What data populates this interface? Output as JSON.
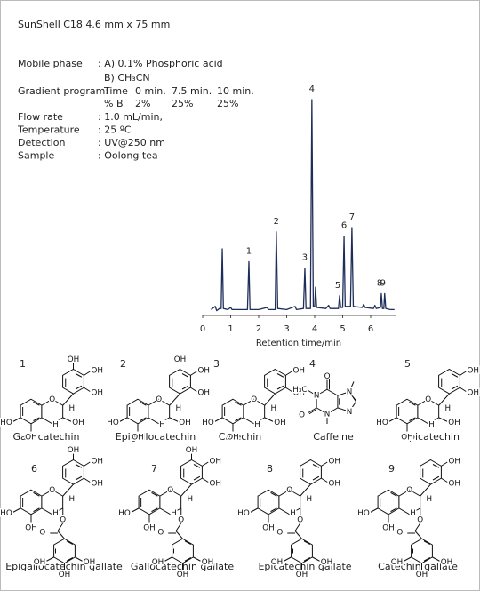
{
  "conditions": {
    "title": "SunShell C18  4.6 mm x 75 mm",
    "mobile_phase": {
      "label": "Mobile phase",
      "a": ": A) 0.1% Phosphoric acid",
      "b": "B) CH₃CN"
    },
    "gradient": {
      "label": "Gradient program:",
      "time_label": "Time",
      "times": [
        "0 min.",
        "7.5 min.",
        "10 min."
      ],
      "b_label": "% B",
      "b": [
        "2%",
        "25%",
        "25%"
      ]
    },
    "rows": [
      {
        "label": "Flow rate",
        "value": ": 1.0 mL/min,"
      },
      {
        "label": "Temperature",
        "value": ": 25 ºC"
      },
      {
        "label": "Detection",
        "value": ": UV@250 nm"
      },
      {
        "label": "Sample",
        "value": ": Oolong tea"
      }
    ]
  },
  "chart_data": {
    "type": "line",
    "x_label": "Retention time/min",
    "color": "#1f2d5a",
    "xlim": [
      0,
      6.9
    ],
    "xticks": [
      0,
      1,
      2,
      3,
      4,
      5,
      6
    ],
    "ylim": [
      0,
      100
    ],
    "x": [
      0.3,
      0.45,
      0.5,
      0.6,
      0.66,
      0.7,
      0.74,
      0.9,
      1.0,
      1.05,
      1.6,
      1.65,
      1.69,
      2.0,
      2.3,
      2.35,
      2.59,
      2.63,
      2.68,
      3.0,
      3.3,
      3.35,
      3.6,
      3.65,
      3.69,
      3.85,
      3.9,
      3.95,
      4.0,
      4.03,
      4.07,
      4.4,
      4.5,
      4.55,
      4.85,
      4.89,
      4.93,
      5.0,
      5.05,
      5.09,
      5.28,
      5.33,
      5.38,
      5.7,
      5.75,
      5.8,
      6.1,
      6.15,
      6.2,
      6.35,
      6.38,
      6.42,
      6.47,
      6.5,
      6.54,
      6.7,
      6.85
    ],
    "values": [
      1.5,
      3,
      1,
      2,
      2,
      30,
      2,
      1.5,
      2.5,
      1.5,
      1.5,
      24,
      1.5,
      1.5,
      2.5,
      1.5,
      1.5,
      38,
      2,
      1.5,
      3,
      1.5,
      2,
      21,
      2,
      2,
      100,
      3,
      3,
      12,
      2.5,
      2,
      3.5,
      2,
      2,
      8,
      2.5,
      2.5,
      36,
      3,
      3,
      40,
      3,
      2.5,
      4,
      2.5,
      2,
      3.5,
      2,
      2.5,
      9,
      2,
      2,
      9,
      2,
      1.5,
      1.5
    ],
    "annotations": [
      {
        "text": "1",
        "x": 1.65
      },
      {
        "text": "2",
        "x": 2.63
      },
      {
        "text": "3",
        "x": 3.65
      },
      {
        "text": "4",
        "x": 3.9
      },
      {
        "text": "5",
        "x": 4.89
      },
      {
        "text": "6",
        "x": 5.05
      },
      {
        "text": "7",
        "x": 5.33
      },
      {
        "text": "8",
        "x": 6.38
      },
      {
        "text": "9",
        "x": 6.5
      }
    ]
  },
  "compounds": [
    {
      "number": "1",
      "name": "Gallocatechin",
      "atoms": [
        "OH",
        "OH",
        "OH",
        "HO",
        "O",
        "H",
        "OH",
        "OH",
        "H"
      ]
    },
    {
      "number": "2",
      "name": "Epigallocatechin",
      "atoms": [
        "OH",
        "OH",
        "OH",
        "HO",
        "O",
        "H",
        "OH",
        "OH",
        "H"
      ]
    },
    {
      "number": "3",
      "name": "Catechin",
      "atoms": [
        "OH",
        "OH",
        "HO",
        "O",
        "H",
        "OH",
        "OH",
        "H"
      ]
    },
    {
      "number": "4",
      "name": "Caffeine",
      "atoms": [
        "H₃C",
        "N",
        "O",
        "O",
        "N",
        "N",
        "N"
      ]
    },
    {
      "number": "5",
      "name": "Epicatechin",
      "atoms": [
        "OH",
        "OH",
        "HO",
        "O",
        "H",
        "OH",
        "OH",
        "H"
      ]
    },
    {
      "number": "6",
      "name": "Epigallocatechin gallate",
      "atoms": [
        "OH",
        "OH",
        "OH",
        "HO",
        "O",
        "H",
        "H",
        "O",
        "OH",
        "O",
        "OH",
        "OH",
        "OH"
      ]
    },
    {
      "number": "7",
      "name": "Gallocatechin gallate",
      "atoms": [
        "OH",
        "OH",
        "OH",
        "HO",
        "O",
        "H",
        "H",
        "O",
        "OH",
        "O",
        "OH",
        "OH",
        "OH"
      ]
    },
    {
      "number": "8",
      "name": "Epicatechin gallate",
      "atoms": [
        "OH",
        "OH",
        "HO",
        "O",
        "H",
        "H",
        "O",
        "OH",
        "O",
        "OH",
        "OH",
        "OH"
      ]
    },
    {
      "number": "9",
      "name": "Catechin gallate",
      "atoms": [
        "OH",
        "OH",
        "HO",
        "O",
        "H",
        "H",
        "O",
        "OH",
        "O",
        "OH",
        "OH",
        "OH"
      ]
    }
  ]
}
